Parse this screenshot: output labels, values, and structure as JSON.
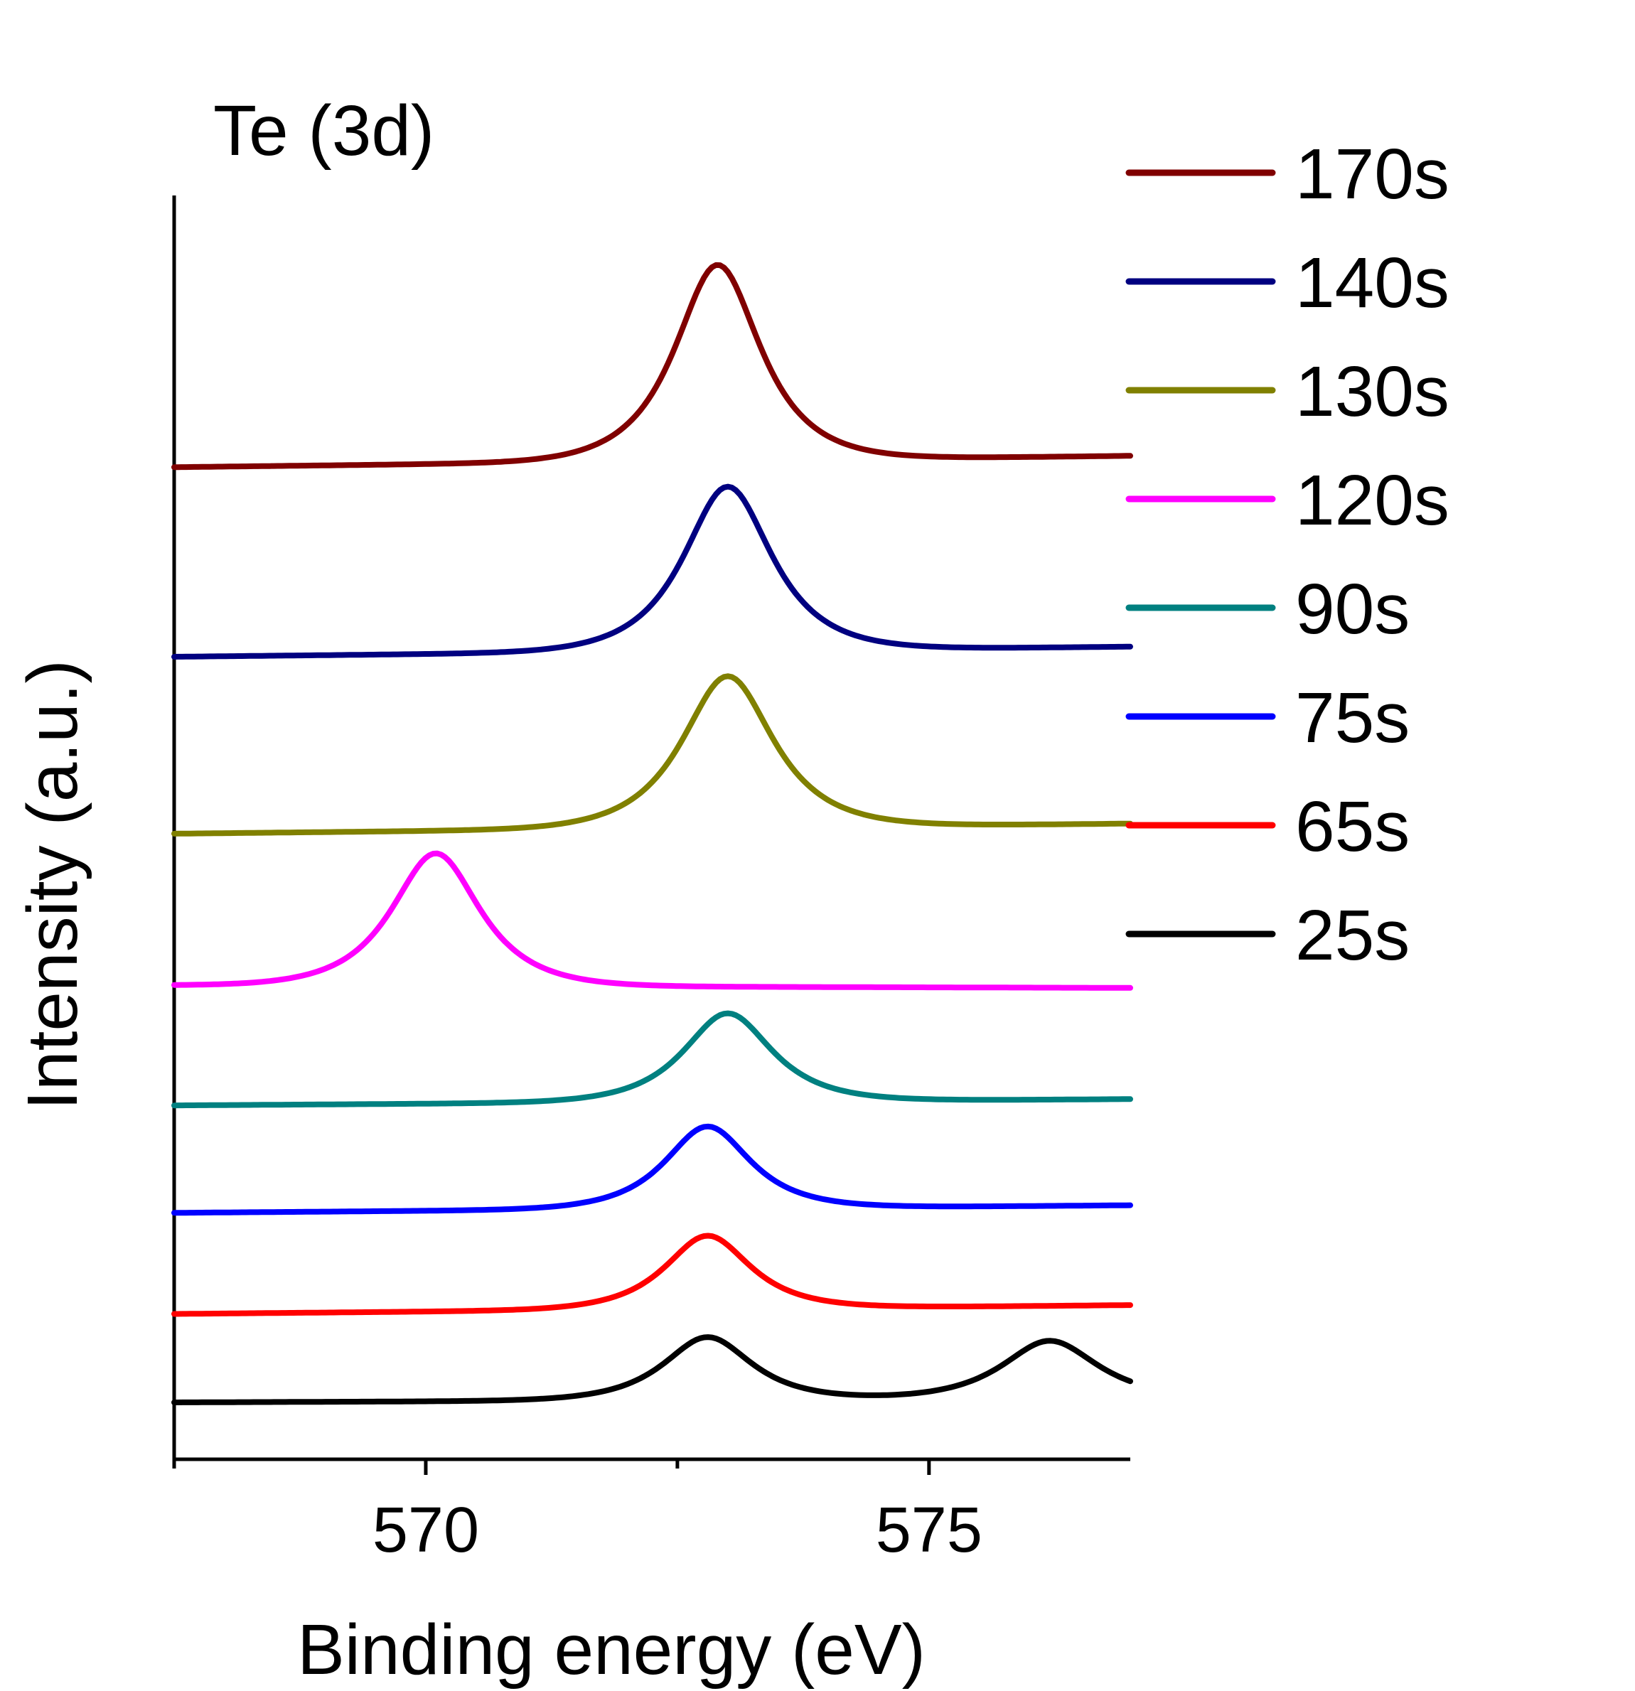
{
  "chart_data": {
    "type": "line",
    "title": "Te (3d)",
    "xlabel": "Binding energy (eV)",
    "ylabel": "Intensity (a.u.)",
    "xlim": [
      567.5,
      577.0
    ],
    "ylim": [
      0,
      100
    ],
    "x_ticks": [
      570,
      575
    ],
    "x_tick_labels": [
      "570",
      "575"
    ],
    "x_minor_ticks": [
      567.5,
      572.5
    ],
    "y_ticks_shown": false,
    "legend_position": "top-right",
    "series": [
      {
        "name": "170s",
        "color": "#800000",
        "offset": 78.5,
        "tail": 0.9,
        "peaks": [
          {
            "center": 572.9,
            "height": 15.5,
            "width": 0.58
          }
        ]
      },
      {
        "name": "140s",
        "color": "#000080",
        "offset": 63.5,
        "tail": 0.8,
        "peaks": [
          {
            "center": 573.0,
            "height": 13.0,
            "width": 0.6
          }
        ]
      },
      {
        "name": "130s",
        "color": "#808000",
        "offset": 49.5,
        "tail": 0.8,
        "peaks": [
          {
            "center": 573.0,
            "height": 12.0,
            "width": 0.62
          }
        ]
      },
      {
        "name": "120s",
        "color": "#FF00FF",
        "offset": 37.5,
        "tail": -0.2,
        "peaks": [
          {
            "center": 570.1,
            "height": 10.5,
            "width": 0.6
          }
        ]
      },
      {
        "name": "90s",
        "color": "#008080",
        "offset": 28.0,
        "tail": 0.5,
        "peaks": [
          {
            "center": 573.0,
            "height": 7.0,
            "width": 0.6
          }
        ]
      },
      {
        "name": "75s",
        "color": "#0000FF",
        "offset": 19.5,
        "tail": 0.6,
        "peaks": [
          {
            "center": 572.8,
            "height": 6.5,
            "width": 0.58
          }
        ]
      },
      {
        "name": "65s",
        "color": "#FF0000",
        "offset": 11.5,
        "tail": 0.7,
        "peaks": [
          {
            "center": 572.8,
            "height": 5.8,
            "width": 0.58
          }
        ]
      },
      {
        "name": "25s",
        "color": "#000000",
        "offset": 4.5,
        "tail": 0.3,
        "peaks": [
          {
            "center": 572.8,
            "height": 5.0,
            "width": 0.6
          },
          {
            "center": 576.2,
            "height": 4.6,
            "width": 0.65
          }
        ]
      }
    ]
  }
}
